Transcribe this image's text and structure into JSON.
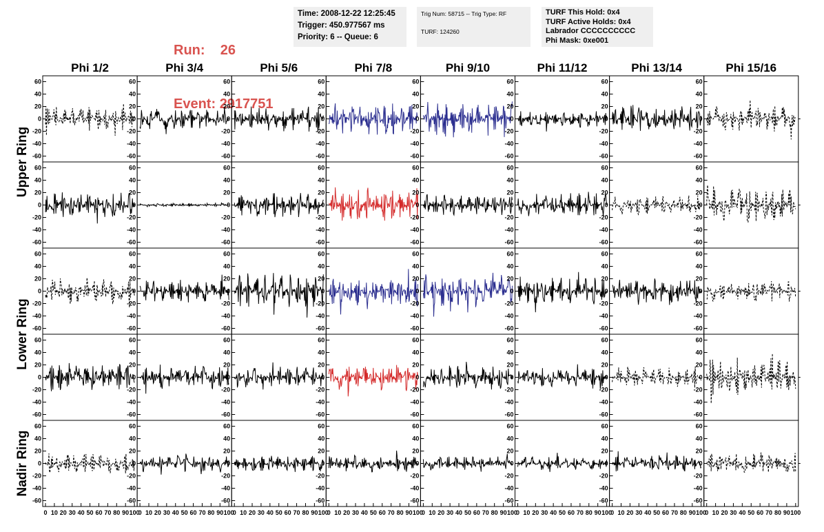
{
  "header": {
    "run_label": "Run:",
    "run_value": "26",
    "event_label": "Event:",
    "event_value": "2917751",
    "time": "Time: 2008-12-22 12:25:45",
    "trigger": "Trigger: 450.977567 ms",
    "priority": "Priority: 6 -- Queue: 6",
    "trig_num": "Trig Num: 58715 -- Trig Type: RF",
    "turf": "TURF: 124260",
    "turf_hold": "TURF This Hold: 0x4",
    "turf_active": "TURF Active Holds: 0x4",
    "labrador": "Labrador CCCCCCCCCC",
    "phi_mask": "Phi Mask: 0xe001"
  },
  "chart_data": {
    "type": "line",
    "columns": [
      "Phi 1/2",
      "Phi 3/4",
      "Phi 5/6",
      "Phi 7/8",
      "Phi 9/10",
      "Phi 11/12",
      "Phi 13/14",
      "Phi 15/16"
    ],
    "ring_labels": [
      "Upper Ring",
      "Lower Ring",
      "Nadir Ring"
    ],
    "ylim": [
      -65,
      65
    ],
    "yticks": [
      -60,
      -40,
      -20,
      0,
      20,
      40,
      60
    ],
    "xlim": [
      0,
      100
    ],
    "xticks": [
      0,
      10,
      20,
      30,
      40,
      50,
      60,
      70,
      80,
      90,
      100
    ],
    "colors": {
      "normal": "#000000",
      "blue": "#2b2e8f",
      "red": "#d42a2a"
    },
    "panel_styles": [
      [
        "dashed",
        "solid",
        "solid",
        "blue",
        "blue",
        "solid",
        "solid",
        "dashed"
      ],
      [
        "solid",
        "solid",
        "solid",
        "red",
        "solid",
        "solid",
        "dashed",
        "dashed"
      ],
      [
        "dashed",
        "solid",
        "solid",
        "blue",
        "blue",
        "solid",
        "solid",
        "dashed"
      ],
      [
        "solid",
        "solid",
        "solid",
        "red",
        "solid",
        "solid",
        "dashed",
        "dashed"
      ],
      [
        "dashed",
        "solid",
        "solid",
        "solid",
        "solid",
        "solid",
        "solid",
        "dashed"
      ]
    ],
    "panel_amplitudes": [
      [
        20,
        18,
        22,
        28,
        30,
        14,
        22,
        22
      ],
      [
        22,
        3,
        22,
        26,
        18,
        20,
        16,
        30
      ],
      [
        22,
        20,
        30,
        24,
        28,
        22,
        22,
        18
      ],
      [
        24,
        20,
        18,
        22,
        20,
        16,
        18,
        32
      ],
      [
        18,
        14,
        14,
        14,
        12,
        12,
        14,
        20
      ]
    ]
  }
}
